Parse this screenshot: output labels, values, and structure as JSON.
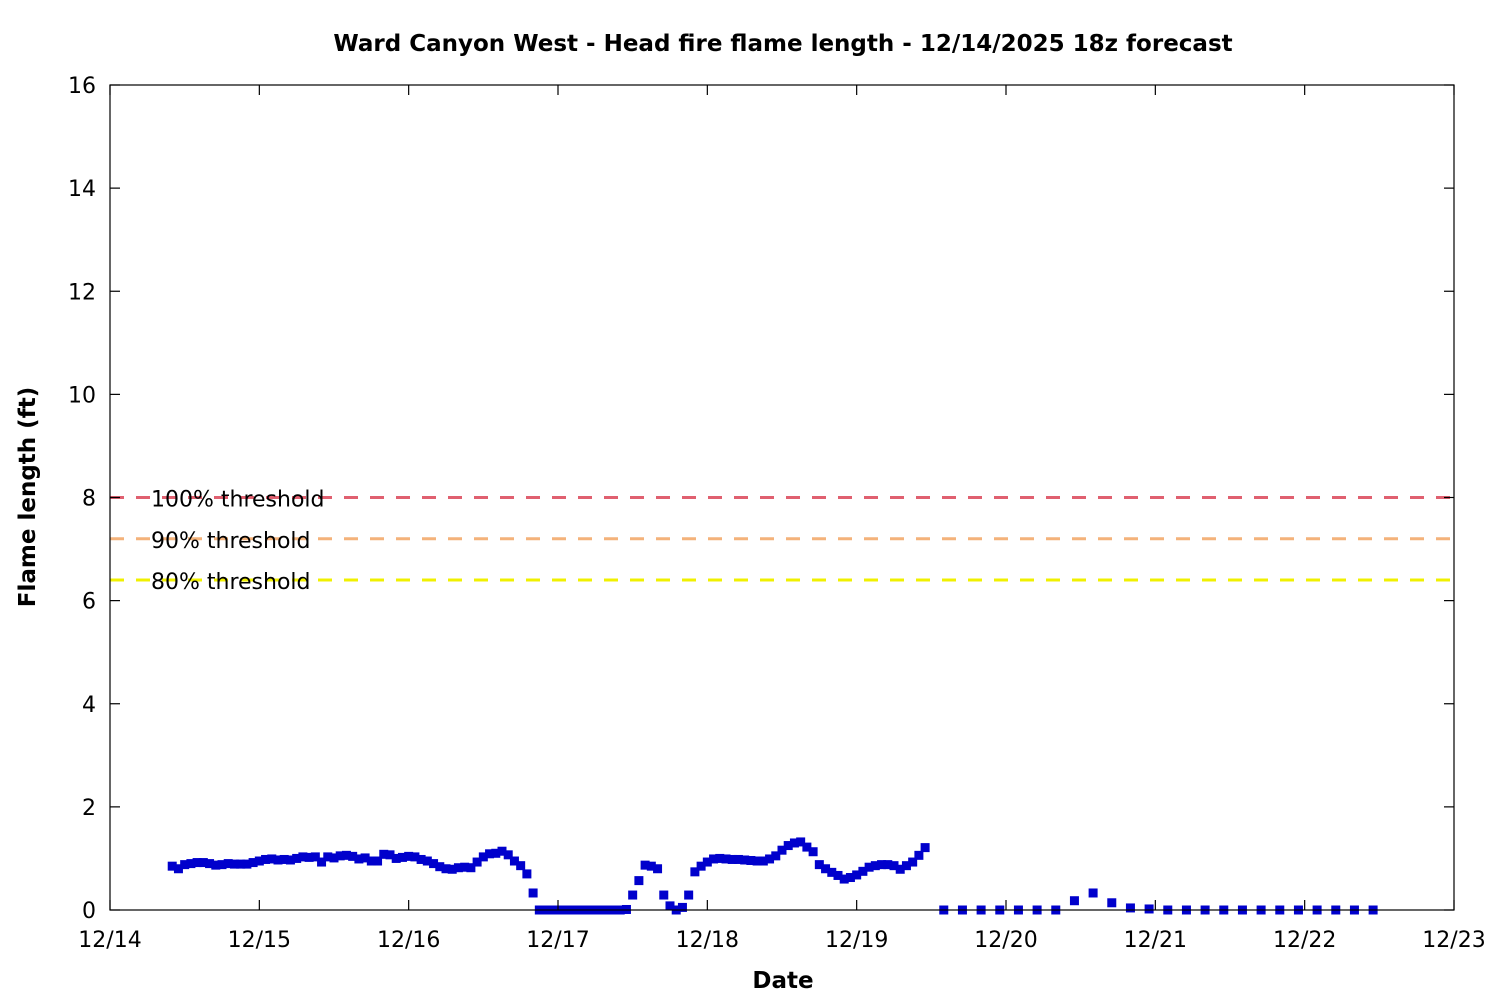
{
  "chart_data": {
    "type": "scatter",
    "title": "Ward Canyon West - Head fire flame length - 12/14/2025 18z forecast",
    "xlabel": "Date",
    "ylabel": "Flame length (ft)",
    "xlim": [
      "12/14",
      "12/23"
    ],
    "ylim": [
      0,
      16
    ],
    "x_ticks": [
      "12/14",
      "12/15",
      "12/16",
      "12/17",
      "12/18",
      "12/19",
      "12/20",
      "12/21",
      "12/22",
      "12/23"
    ],
    "y_ticks": [
      0,
      2,
      4,
      6,
      8,
      10,
      12,
      14,
      16
    ],
    "grid": false,
    "marker_color": "#0000cc",
    "thresholds": [
      {
        "label": "100% threshold",
        "value": 8.0,
        "color": "#e06070"
      },
      {
        "label": "90% threshold",
        "value": 7.2,
        "color": "#f4b27a"
      },
      {
        "label": "80% threshold",
        "value": 6.4,
        "color": "#f0f000"
      }
    ],
    "series": [
      {
        "points": [
          [
            "12/14 10:00",
            0.85
          ],
          [
            "12/14 11:00",
            0.8
          ],
          [
            "12/14 12:00",
            0.88
          ],
          [
            "12/14 13:00",
            0.9
          ],
          [
            "12/14 14:00",
            0.92
          ],
          [
            "12/14 15:00",
            0.92
          ],
          [
            "12/14 16:00",
            0.9
          ],
          [
            "12/14 17:00",
            0.87
          ],
          [
            "12/14 18:00",
            0.88
          ],
          [
            "12/14 19:00",
            0.9
          ],
          [
            "12/14 20:00",
            0.89
          ],
          [
            "12/14 21:00",
            0.89
          ],
          [
            "12/14 22:00",
            0.89
          ],
          [
            "12/14 23:00",
            0.92
          ],
          [
            "12/15 00:00",
            0.95
          ],
          [
            "12/15 01:00",
            0.98
          ],
          [
            "12/15 02:00",
            0.99
          ],
          [
            "12/15 03:00",
            0.97
          ],
          [
            "12/15 04:00",
            0.98
          ],
          [
            "12/15 05:00",
            0.97
          ],
          [
            "12/15 06:00",
            1.0
          ],
          [
            "12/15 07:00",
            1.03
          ],
          [
            "12/15 08:00",
            1.02
          ],
          [
            "12/15 09:00",
            1.03
          ],
          [
            "12/15 10:00",
            0.93
          ],
          [
            "12/15 11:00",
            1.03
          ],
          [
            "12/15 12:00",
            1.01
          ],
          [
            "12/15 13:00",
            1.05
          ],
          [
            "12/15 14:00",
            1.06
          ],
          [
            "12/15 15:00",
            1.04
          ],
          [
            "12/15 16:00",
            0.99
          ],
          [
            "12/15 17:00",
            1.01
          ],
          [
            "12/15 18:00",
            0.95
          ],
          [
            "12/15 19:00",
            0.95
          ],
          [
            "12/15 20:00",
            1.08
          ],
          [
            "12/15 21:00",
            1.07
          ],
          [
            "12/15 22:00",
            1.0
          ],
          [
            "12/15 23:00",
            1.02
          ],
          [
            "12/16 00:00",
            1.04
          ],
          [
            "12/16 01:00",
            1.03
          ],
          [
            "12/16 02:00",
            0.98
          ],
          [
            "12/16 03:00",
            0.95
          ],
          [
            "12/16 04:00",
            0.9
          ],
          [
            "12/16 05:00",
            0.84
          ],
          [
            "12/16 06:00",
            0.8
          ],
          [
            "12/16 07:00",
            0.79
          ],
          [
            "12/16 08:00",
            0.82
          ],
          [
            "12/16 09:00",
            0.83
          ],
          [
            "12/16 10:00",
            0.82
          ],
          [
            "12/16 11:00",
            0.93
          ],
          [
            "12/16 12:00",
            1.03
          ],
          [
            "12/16 13:00",
            1.09
          ],
          [
            "12/16 14:00",
            1.1
          ],
          [
            "12/16 15:00",
            1.14
          ],
          [
            "12/16 16:00",
            1.07
          ],
          [
            "12/16 17:00",
            0.95
          ],
          [
            "12/16 18:00",
            0.86
          ],
          [
            "12/16 19:00",
            0.7
          ],
          [
            "12/16 20:00",
            0.33
          ],
          [
            "12/16 21:00",
            0.0
          ],
          [
            "12/16 22:00",
            0.0
          ],
          [
            "12/16 23:00",
            0.0
          ],
          [
            "12/17 00:00",
            0.0
          ],
          [
            "12/17 01:00",
            0.0
          ],
          [
            "12/17 02:00",
            0.0
          ],
          [
            "12/17 03:00",
            0.0
          ],
          [
            "12/17 04:00",
            0.0
          ],
          [
            "12/17 05:00",
            0.0
          ],
          [
            "12/17 06:00",
            0.0
          ],
          [
            "12/17 07:00",
            0.0
          ],
          [
            "12/17 08:00",
            0.0
          ],
          [
            "12/17 09:00",
            0.0
          ],
          [
            "12/17 10:00",
            0.0
          ],
          [
            "12/17 11:00",
            0.01
          ],
          [
            "12/17 12:00",
            0.29
          ],
          [
            "12/17 13:00",
            0.57
          ],
          [
            "12/17 14:00",
            0.87
          ],
          [
            "12/17 15:00",
            0.85
          ],
          [
            "12/17 16:00",
            0.8
          ],
          [
            "12/17 17:00",
            0.29
          ],
          [
            "12/17 18:00",
            0.08
          ],
          [
            "12/17 19:00",
            0.0
          ],
          [
            "12/17 20:00",
            0.05
          ],
          [
            "12/17 21:00",
            0.29
          ],
          [
            "12/17 22:00",
            0.74
          ],
          [
            "12/17 23:00",
            0.85
          ],
          [
            "12/18 00:00",
            0.93
          ],
          [
            "12/18 01:00",
            0.99
          ],
          [
            "12/18 02:00",
            1.0
          ],
          [
            "12/18 03:00",
            0.99
          ],
          [
            "12/18 04:00",
            0.98
          ],
          [
            "12/18 05:00",
            0.98
          ],
          [
            "12/18 06:00",
            0.97
          ],
          [
            "12/18 07:00",
            0.96
          ],
          [
            "12/18 08:00",
            0.95
          ],
          [
            "12/18 09:00",
            0.95
          ],
          [
            "12/18 10:00",
            0.99
          ],
          [
            "12/18 11:00",
            1.05
          ],
          [
            "12/18 12:00",
            1.16
          ],
          [
            "12/18 13:00",
            1.25
          ],
          [
            "12/18 14:00",
            1.3
          ],
          [
            "12/18 15:00",
            1.32
          ],
          [
            "12/18 16:00",
            1.22
          ],
          [
            "12/18 17:00",
            1.13
          ],
          [
            "12/18 18:00",
            0.88
          ],
          [
            "12/18 19:00",
            0.8
          ],
          [
            "12/18 20:00",
            0.73
          ],
          [
            "12/18 21:00",
            0.67
          ],
          [
            "12/18 22:00",
            0.6
          ],
          [
            "12/18 23:00",
            0.63
          ],
          [
            "12/19 00:00",
            0.68
          ],
          [
            "12/19 01:00",
            0.75
          ],
          [
            "12/19 02:00",
            0.83
          ],
          [
            "12/19 03:00",
            0.86
          ],
          [
            "12/19 04:00",
            0.88
          ],
          [
            "12/19 05:00",
            0.88
          ],
          [
            "12/19 06:00",
            0.86
          ],
          [
            "12/19 07:00",
            0.79
          ],
          [
            "12/19 08:00",
            0.86
          ],
          [
            "12/19 09:00",
            0.93
          ],
          [
            "12/19 10:00",
            1.06
          ],
          [
            "12/19 11:00",
            1.21
          ],
          [
            "12/19 14:00",
            0.0
          ],
          [
            "12/19 17:00",
            0.0
          ],
          [
            "12/19 20:00",
            0.0
          ],
          [
            "12/19 23:00",
            0.0
          ],
          [
            "12/20 02:00",
            0.0
          ],
          [
            "12/20 05:00",
            0.0
          ],
          [
            "12/20 08:00",
            0.0
          ],
          [
            "12/20 11:00",
            0.18
          ],
          [
            "12/20 14:00",
            0.33
          ],
          [
            "12/20 17:00",
            0.14
          ],
          [
            "12/20 20:00",
            0.04
          ],
          [
            "12/20 23:00",
            0.02
          ],
          [
            "12/21 02:00",
            0.0
          ],
          [
            "12/21 05:00",
            0.0
          ],
          [
            "12/21 08:00",
            0.0
          ],
          [
            "12/21 11:00",
            0.0
          ],
          [
            "12/21 14:00",
            0.0
          ],
          [
            "12/21 17:00",
            0.0
          ],
          [
            "12/21 20:00",
            0.0
          ],
          [
            "12/21 23:00",
            0.0
          ],
          [
            "12/22 02:00",
            0.0
          ],
          [
            "12/22 05:00",
            0.0
          ],
          [
            "12/22 08:00",
            0.0
          ],
          [
            "12/22 11:00",
            0.0
          ]
        ]
      }
    ]
  }
}
